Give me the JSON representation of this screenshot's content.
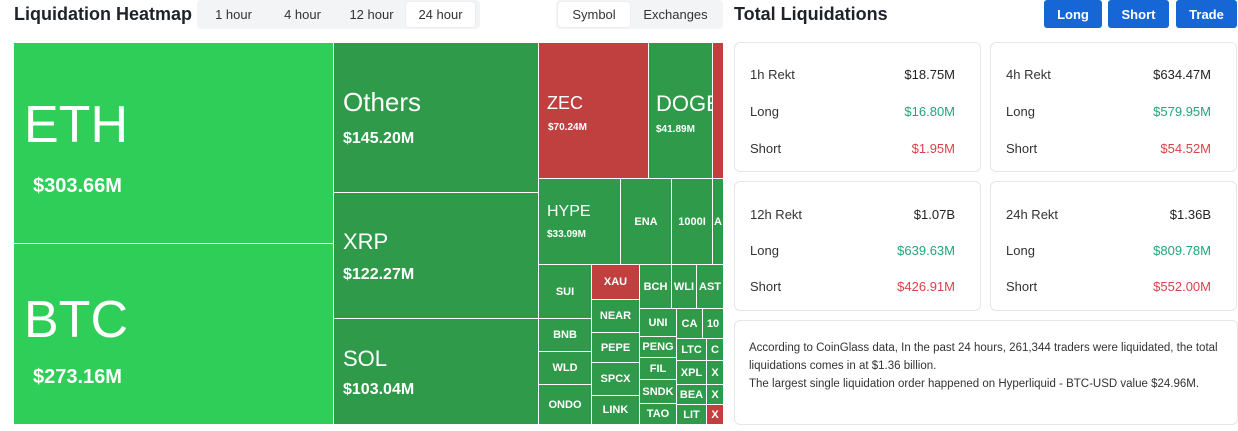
{
  "heatmap": {
    "title": "Liquidation Heatmap",
    "time_tabs": [
      "1 hour",
      "4 hour",
      "12 hour",
      "24 hour"
    ],
    "time_selected": "24 hour",
    "mode_tabs": [
      "Symbol",
      "Exchanges"
    ],
    "mode_selected": "Symbol",
    "cells": {
      "eth": {
        "symbol": "ETH",
        "value": "$303.66M"
      },
      "btc": {
        "symbol": "BTC",
        "value": "$273.16M"
      },
      "others": {
        "symbol": "Others",
        "value": "$145.20M"
      },
      "xrp": {
        "symbol": "XRP",
        "value": "$122.27M"
      },
      "sol": {
        "symbol": "SOL",
        "value": "$103.04M"
      },
      "zec": {
        "symbol": "ZEC",
        "value": "$70.24M"
      },
      "doge": {
        "symbol": "DOGE",
        "value": "$41.89M"
      },
      "hype": {
        "symbol": "HYPE",
        "value": "$33.09M"
      },
      "ena": {
        "symbol": "ENA"
      },
      "k1000": {
        "symbol": "1000I"
      },
      "a": {
        "symbol": "A"
      },
      "sui": {
        "symbol": "SUI"
      },
      "xau": {
        "symbol": "XAU"
      },
      "bch": {
        "symbol": "BCH"
      },
      "wli": {
        "symbol": "WLI"
      },
      "ast": {
        "symbol": "AST"
      },
      "bnb": {
        "symbol": "BNB"
      },
      "near": {
        "symbol": "NEAR"
      },
      "uni": {
        "symbol": "UNI"
      },
      "ca": {
        "symbol": "CA"
      },
      "k10": {
        "symbol": "10"
      },
      "pepe": {
        "symbol": "PEPE"
      },
      "peng": {
        "symbol": "PENG"
      },
      "ltc": {
        "symbol": "LTC"
      },
      "c": {
        "symbol": "C"
      },
      "wld": {
        "symbol": "WLD"
      },
      "spcx": {
        "symbol": "SPCX"
      },
      "fil": {
        "symbol": "FIL"
      },
      "xpl": {
        "symbol": "XPL"
      },
      "x1": {
        "symbol": "X"
      },
      "snd": {
        "symbol": "SNDK"
      },
      "bea": {
        "symbol": "BEA"
      },
      "x2": {
        "symbol": "X"
      },
      "ondo": {
        "symbol": "ONDO"
      },
      "link": {
        "symbol": "LINK"
      },
      "tao": {
        "symbol": "TAO"
      },
      "lit": {
        "symbol": "LIT"
      },
      "x3": {
        "symbol": "X"
      }
    }
  },
  "totals": {
    "title": "Total Liquidations",
    "buttons": {
      "long": "Long",
      "short": "Short",
      "trade": "Trade"
    },
    "cards": [
      {
        "title": "1h Rekt",
        "total": "$18.75M",
        "long_label": "Long",
        "long": "$16.80M",
        "short_label": "Short",
        "short": "$1.95M"
      },
      {
        "title": "4h Rekt",
        "total": "$634.47M",
        "long_label": "Long",
        "long": "$579.95M",
        "short_label": "Short",
        "short": "$54.52M"
      },
      {
        "title": "12h Rekt",
        "total": "$1.07B",
        "long_label": "Long",
        "long": "$639.63M",
        "short_label": "Short",
        "short": "$426.91M"
      },
      {
        "title": "24h Rekt",
        "total": "$1.36B",
        "long_label": "Long",
        "long": "$809.78M",
        "short_label": "Short",
        "short": "$552.00M"
      }
    ],
    "description": {
      "line1": "According to CoinGlass data, In the past 24 hours, 261,344 traders were liquidated, the total liquidations comes in at $1.36 billion.",
      "line2": "The largest single liquidation order happened on Hyperliquid - BTC-USD value $24.96M."
    }
  },
  "colors": {
    "green_bright": "#2fce58",
    "green_dark": "#2f9a49",
    "red": "#c0403f",
    "button_blue": "#1766d6",
    "long_text": "#1fa67a",
    "short_text": "#d9424a"
  }
}
